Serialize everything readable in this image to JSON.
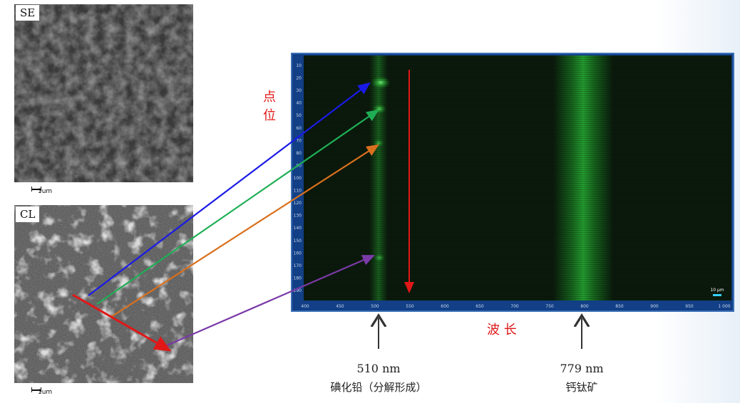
{
  "se_panel": {
    "label": "SE",
    "scale_label": "1um"
  },
  "cl_panel": {
    "label": "CL",
    "scale_label": "1um"
  },
  "spectrum": {
    "x_ticks": [
      "400",
      "450",
      "500",
      "550",
      "600",
      "650",
      "700",
      "750",
      "800",
      "850",
      "900",
      "950",
      "1 000"
    ],
    "y_ticks": [
      "10",
      "20",
      "30",
      "40",
      "50",
      "60",
      "70",
      "80",
      "90",
      "100",
      "110",
      "120",
      "130",
      "140",
      "150",
      "160",
      "170",
      "180",
      "190"
    ],
    "scale_label": "10 µm"
  },
  "axis_text": {
    "position": "点位",
    "wavelength": "波 长"
  },
  "peaks": [
    {
      "value": "510 nm",
      "material": "碘化铅（分解形成）"
    },
    {
      "value": "779 nm",
      "material": "钙钛矿"
    }
  ],
  "colors": {
    "blue": "#1a1ae6",
    "green": "#1fae55",
    "orange": "#d9701d",
    "purple": "#7a3aa8",
    "red": "#e01818",
    "frame": "#3b6fb6"
  }
}
